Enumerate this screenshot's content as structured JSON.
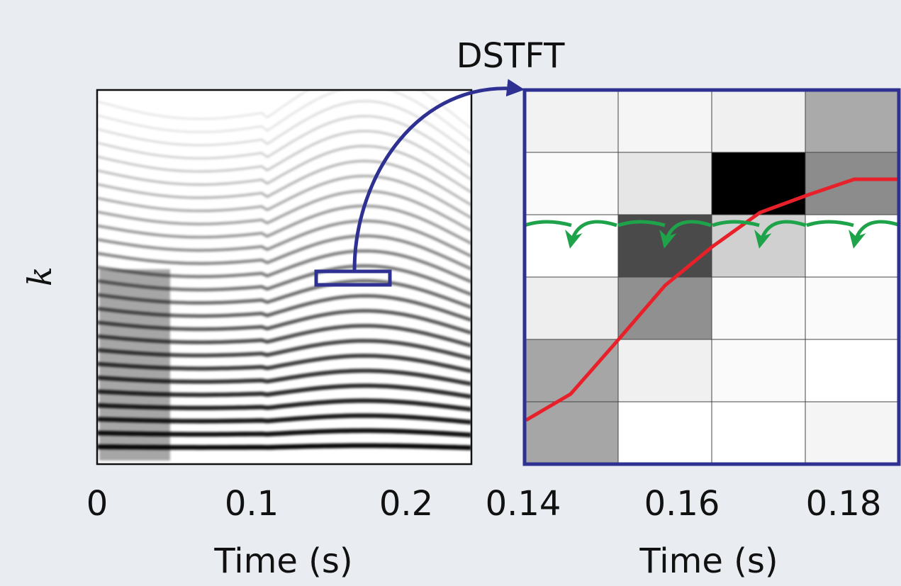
{
  "title": "DSTFT",
  "left_panel": {
    "y_label": "k",
    "x_ticks": [
      "0",
      "0.1",
      "0.2"
    ],
    "x_label": "Time (s)"
  },
  "right_panel": {
    "x_ticks": [
      "0.14",
      "0.16",
      "0.18"
    ],
    "x_label": "Time (s)"
  }
}
